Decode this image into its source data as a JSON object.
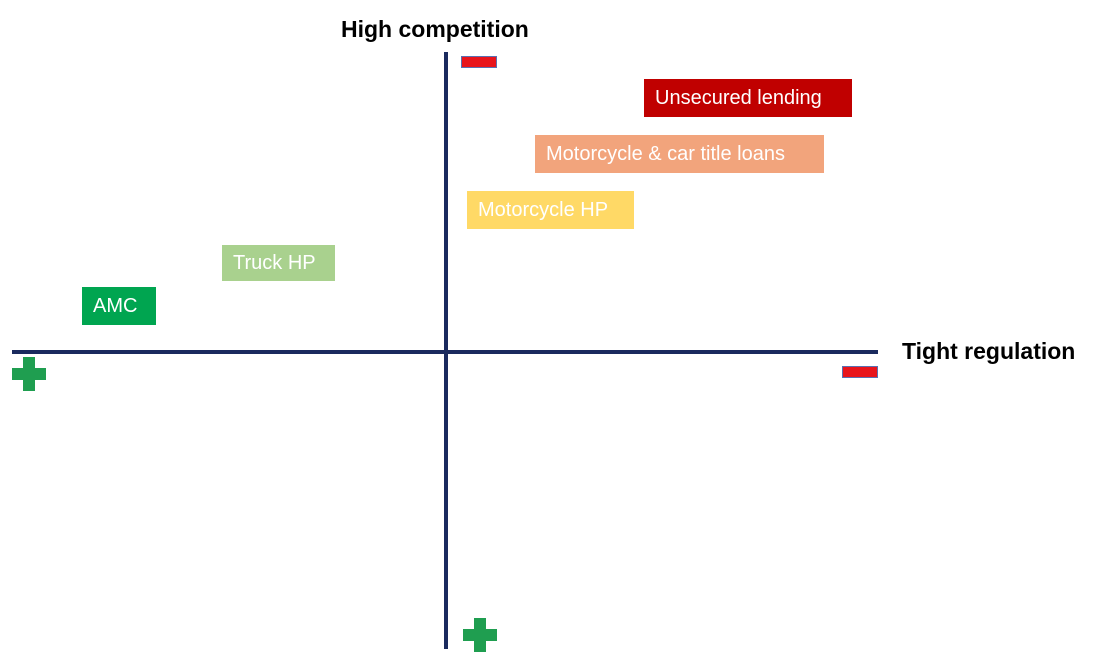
{
  "axes": {
    "vertical_title": "High competition",
    "horizontal_title": "Tight regulation"
  },
  "markers": {
    "top": "minus-icon",
    "right": "minus-icon",
    "left": "plus-icon",
    "bottom": "plus-icon"
  },
  "items": [
    {
      "label": "Unsecured lending",
      "color": "#c00000"
    },
    {
      "label": "Motorcycle & car title loans",
      "color": "#f2a47c"
    },
    {
      "label": "Motorcycle HP",
      "color": "#ffd966"
    },
    {
      "label": "Truck HP",
      "color": "#a9d18e"
    },
    {
      "label": "AMC",
      "color": "#00a550"
    }
  ]
}
